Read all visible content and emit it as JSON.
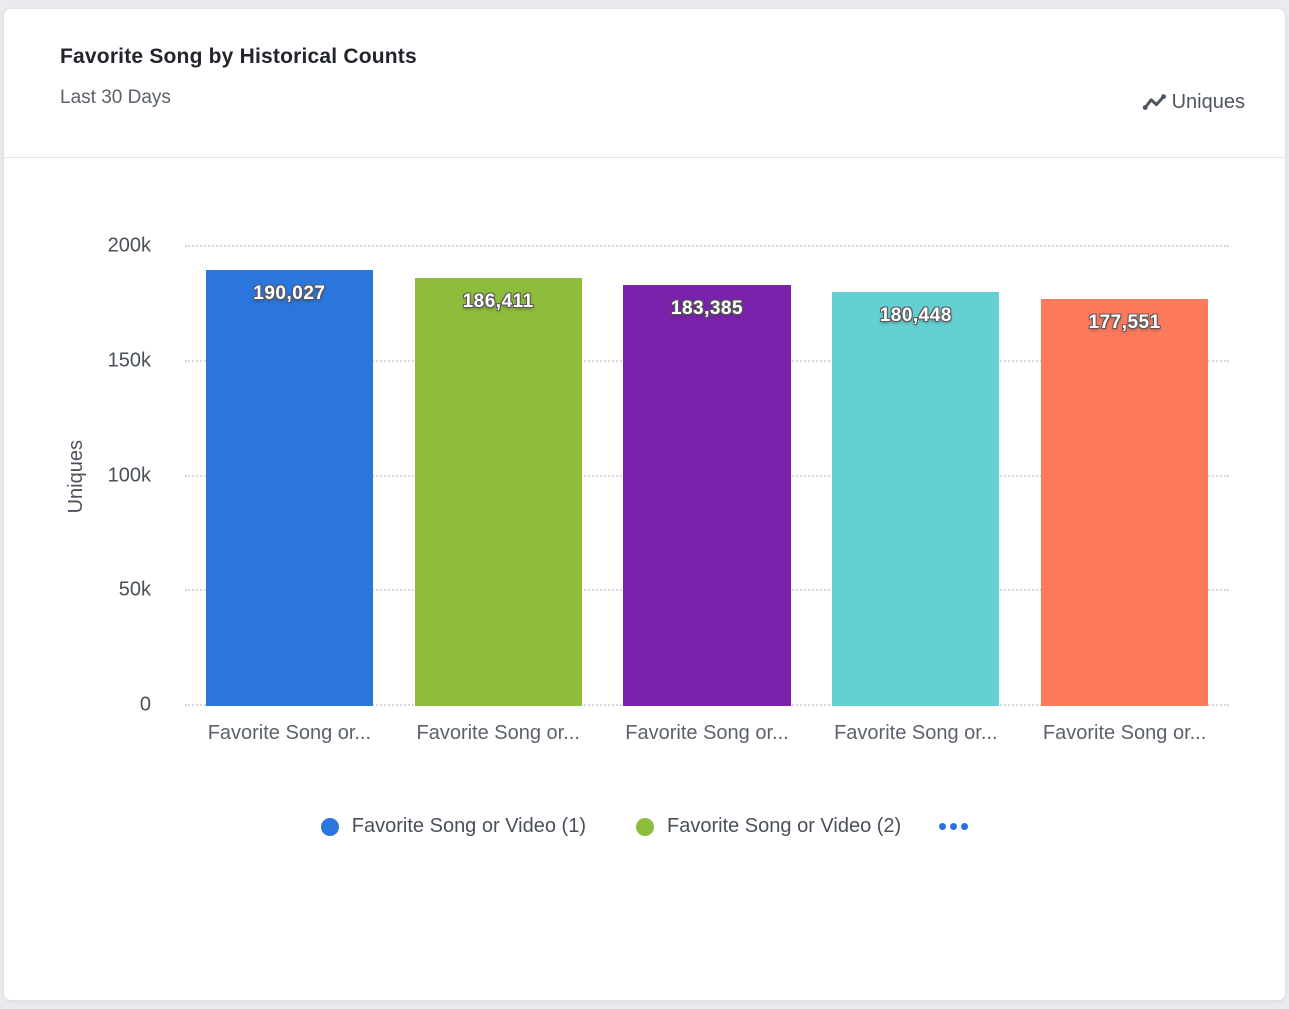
{
  "card": {
    "title": "Favorite Song by Historical Counts",
    "subtitle": "Last 30 Days",
    "metric_label": "Uniques",
    "metric_icon": "line-chart-icon"
  },
  "chart_data": {
    "type": "bar",
    "title": "Favorite Song by Historical Counts",
    "subtitle": "Last 30 Days",
    "metric": "Uniques",
    "categories": [
      "Favorite Song or...",
      "Favorite Song or...",
      "Favorite Song or...",
      "Favorite Song or...",
      "Favorite Song or..."
    ],
    "values": [
      190027,
      186411,
      183385,
      180448,
      177551
    ],
    "value_labels": [
      "190,027",
      "186,411",
      "183,385",
      "180,448",
      "177,551"
    ],
    "bar_colors": [
      "#2b76dd",
      "#8ebd3b",
      "#7a22ab",
      "#64d0d3",
      "#fe7a5c"
    ],
    "xlabel": "",
    "ylabel": "Uniques",
    "ylim": [
      0,
      200000
    ],
    "yticks": [
      {
        "value": 0,
        "label": "0"
      },
      {
        "value": 50000,
        "label": "50k"
      },
      {
        "value": 100000,
        "label": "100k"
      },
      {
        "value": 150000,
        "label": "150k"
      },
      {
        "value": 200000,
        "label": "200k"
      }
    ],
    "grid": "horizontal-dotted",
    "legend": {
      "position": "bottom-center",
      "items": [
        {
          "label": "Favorite Song or Video (1)",
          "color": "#2b76dd"
        },
        {
          "label": "Favorite Song or Video (2)",
          "color": "#8ebd3b"
        }
      ],
      "overflow_indicator": "..."
    }
  }
}
